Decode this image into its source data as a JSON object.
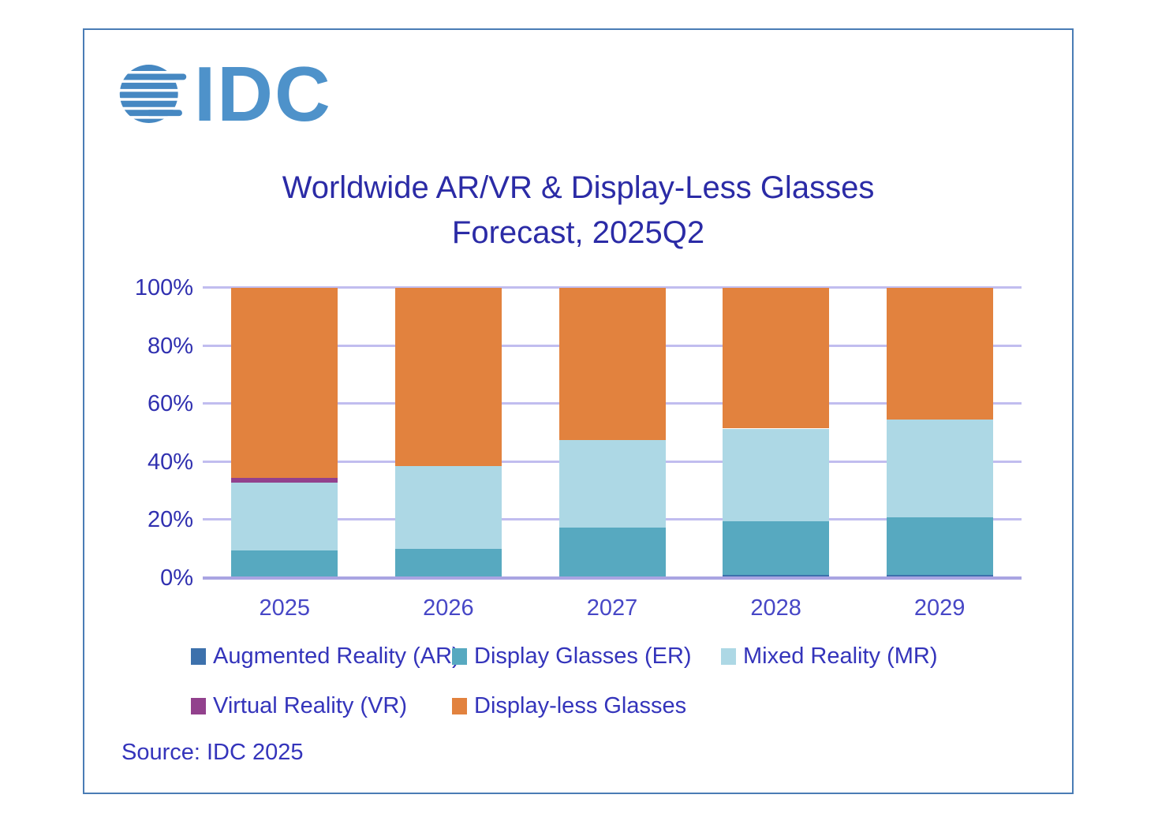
{
  "logo": {
    "text": "IDC",
    "color": "#4e92ca",
    "globe_color": "#4688c2"
  },
  "title": {
    "line1": "Worldwide AR/VR & Display-Less Glasses",
    "line2": "Forecast, 2025Q2"
  },
  "source": "Source: IDC 2025",
  "chart_data": {
    "type": "bar",
    "stacked": true,
    "unit": "percent share",
    "title": "Worldwide AR/VR & Display-Less Glasses Forecast, 2025Q2",
    "categories": [
      "2025",
      "2026",
      "2027",
      "2028",
      "2029"
    ],
    "series": [
      {
        "name": "Augmented Reality (AR)",
        "color": "#3d71ac",
        "values": [
          0.5,
          0.5,
          0.5,
          1,
          1
        ]
      },
      {
        "name": "Display Glasses (ER)",
        "color": "#57a9c0",
        "values": [
          9,
          9.5,
          17,
          18.5,
          20
        ]
      },
      {
        "name": "Mixed Reality (MR)",
        "color": "#add8e5",
        "values": [
          23.5,
          28.5,
          30,
          32,
          33.5
        ]
      },
      {
        "name": "Virtual Reality (VR)",
        "color": "#92418d",
        "values": [
          1.5,
          0,
          0,
          0,
          0
        ]
      },
      {
        "name": "Display-less Glasses",
        "color": "#e2823e",
        "values": [
          65.5,
          61.5,
          52.5,
          48.5,
          45.5
        ]
      }
    ],
    "xlabel": "",
    "ylabel": "",
    "ylim": [
      0,
      100
    ],
    "yticks": [
      0,
      20,
      40,
      60,
      80,
      100
    ],
    "ytick_labels": [
      "0%",
      "20%",
      "40%",
      "60%",
      "80%",
      "100%"
    ],
    "grid": true,
    "gridline_color": "#c1bdef",
    "axis_text_color": "#3030b0",
    "legend_position": "bottom",
    "legend_rows": [
      [
        0,
        1,
        2
      ],
      [
        3,
        4
      ]
    ]
  }
}
